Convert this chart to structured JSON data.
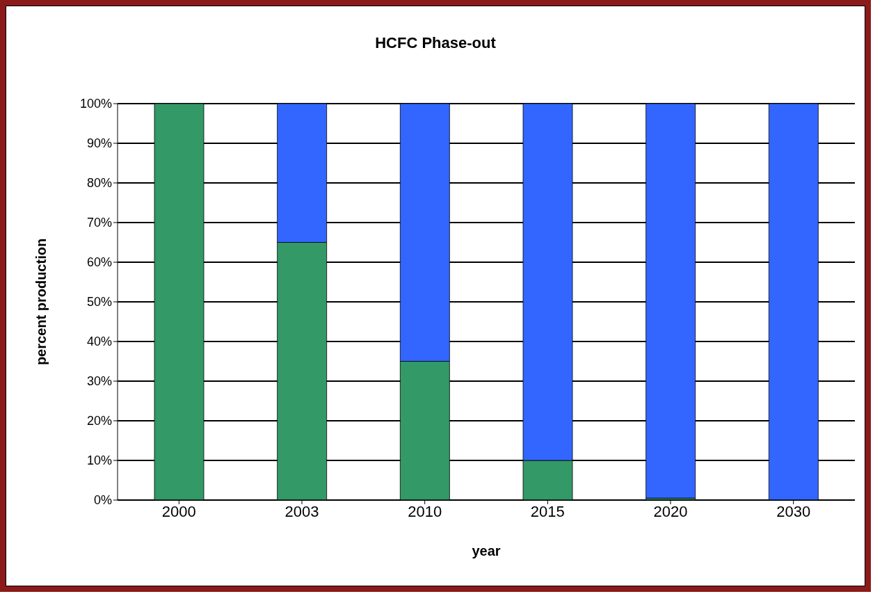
{
  "chart_data": {
    "type": "bar",
    "title": "HCFC Phase-out",
    "xlabel": "year",
    "ylabel": "percent production",
    "categories": [
      "2000",
      "2003",
      "2010",
      "2015",
      "2020",
      "2030"
    ],
    "stacked": true,
    "series": [
      {
        "color": "#339966",
        "values": [
          100,
          65,
          35,
          10,
          0.5,
          0
        ]
      },
      {
        "color": "#3366ff",
        "values": [
          0,
          35,
          65,
          90,
          99.5,
          100
        ]
      }
    ],
    "ylim": [
      0,
      100
    ],
    "yticks": [
      {
        "value": 0,
        "label": "0%"
      },
      {
        "value": 10,
        "label": "10%"
      },
      {
        "value": 20,
        "label": "20%"
      },
      {
        "value": 30,
        "label": "30%"
      },
      {
        "value": 40,
        "label": "40%"
      },
      {
        "value": 50,
        "label": "50%"
      },
      {
        "value": 60,
        "label": "60%"
      },
      {
        "value": 70,
        "label": "70%"
      },
      {
        "value": 80,
        "label": "80%"
      },
      {
        "value": 90,
        "label": "90%"
      },
      {
        "value": 100,
        "label": "100%"
      }
    ],
    "grid": "y",
    "legend": false
  }
}
